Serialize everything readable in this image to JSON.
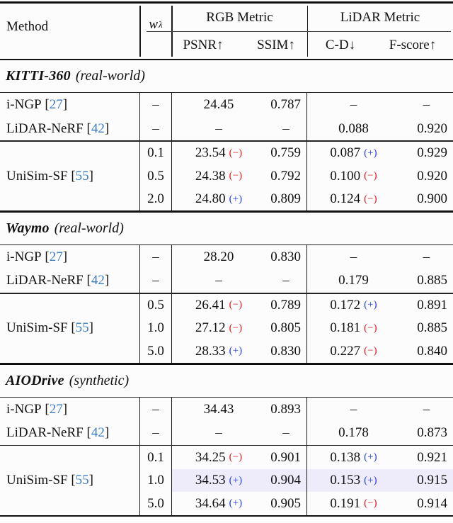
{
  "colors": {
    "citation": "#3b7dc4",
    "plus": "#2a46d9",
    "minus": "#da2128",
    "rule": "#121212",
    "highlight": "#eeecfa"
  },
  "header": {
    "method": "Method",
    "weight_symbol": "w",
    "weight_subscript": "λ",
    "groups": [
      "RGB Metric",
      "LiDAR Metric"
    ],
    "metrics": [
      "PSNR↑",
      "SSIM↑",
      "C-D↓",
      "F-score↑"
    ]
  },
  "sections": [
    {
      "title": "KITTI-360",
      "qualifier": "(real-world)",
      "baselines": [
        {
          "method": "i-NGP",
          "cite": "27",
          "w": "–",
          "psnr": "24.45",
          "ssim": "0.787",
          "cd": "–",
          "fscore": "–"
        },
        {
          "method": "LiDAR-NeRF",
          "cite": "42",
          "w": "–",
          "psnr": "–",
          "ssim": "–",
          "cd": "0.088",
          "fscore": "0.920"
        }
      ],
      "variant": {
        "method": "UniSim-SF",
        "cite": "55",
        "rows": [
          {
            "w": "0.1",
            "psnr": "23.54",
            "psnr_sign": "−",
            "ssim": "0.759",
            "cd": "0.087",
            "cd_sign": "+",
            "fscore": "0.929",
            "highlight": false
          },
          {
            "w": "0.5",
            "psnr": "24.38",
            "psnr_sign": "−",
            "ssim": "0.792",
            "cd": "0.100",
            "cd_sign": "−",
            "fscore": "0.920",
            "highlight": false
          },
          {
            "w": "2.0",
            "psnr": "24.80",
            "psnr_sign": "+",
            "ssim": "0.809",
            "cd": "0.124",
            "cd_sign": "−",
            "fscore": "0.900",
            "highlight": false
          }
        ]
      }
    },
    {
      "title": "Waymo",
      "qualifier": "(real-world)",
      "baselines": [
        {
          "method": "i-NGP",
          "cite": "27",
          "w": "–",
          "psnr": "28.20",
          "ssim": "0.830",
          "cd": "–",
          "fscore": "–"
        },
        {
          "method": "LiDAR-NeRF",
          "cite": "42",
          "w": "–",
          "psnr": "–",
          "ssim": "–",
          "cd": "0.179",
          "fscore": "0.885"
        }
      ],
      "variant": {
        "method": "UniSim-SF",
        "cite": "55",
        "rows": [
          {
            "w": "0.5",
            "psnr": "26.41",
            "psnr_sign": "−",
            "ssim": "0.789",
            "cd": "0.172",
            "cd_sign": "+",
            "fscore": "0.891",
            "highlight": false
          },
          {
            "w": "1.0",
            "psnr": "27.12",
            "psnr_sign": "−",
            "ssim": "0.805",
            "cd": "0.181",
            "cd_sign": "−",
            "fscore": "0.885",
            "highlight": false
          },
          {
            "w": "5.0",
            "psnr": "28.33",
            "psnr_sign": "+",
            "ssim": "0.830",
            "cd": "0.227",
            "cd_sign": "−",
            "fscore": "0.840",
            "highlight": false
          }
        ]
      }
    },
    {
      "title": "AIODrive",
      "qualifier": "(synthetic)",
      "baselines": [
        {
          "method": "i-NGP",
          "cite": "27",
          "w": "–",
          "psnr": "34.43",
          "ssim": "0.893",
          "cd": "–",
          "fscore": "–"
        },
        {
          "method": "LiDAR-NeRF",
          "cite": "42",
          "w": "–",
          "psnr": "–",
          "ssim": "–",
          "cd": "0.178",
          "fscore": "0.873"
        }
      ],
      "variant": {
        "method": "UniSim-SF",
        "cite": "55",
        "rows": [
          {
            "w": "0.1",
            "psnr": "34.25",
            "psnr_sign": "−",
            "ssim": "0.901",
            "cd": "0.138",
            "cd_sign": "+",
            "fscore": "0.921",
            "highlight": false
          },
          {
            "w": "1.0",
            "psnr": "34.53",
            "psnr_sign": "+",
            "ssim": "0.904",
            "cd": "0.153",
            "cd_sign": "+",
            "fscore": "0.915",
            "highlight": true
          },
          {
            "w": "5.0",
            "psnr": "34.64",
            "psnr_sign": "+",
            "ssim": "0.905",
            "cd": "0.191",
            "cd_sign": "−",
            "fscore": "0.914",
            "highlight": false
          }
        ]
      }
    }
  ]
}
